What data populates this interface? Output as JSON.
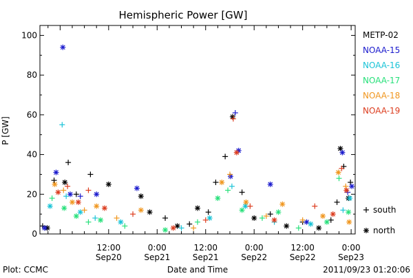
{
  "chart_data": {
    "type": "scatter",
    "title": "Hemispheric Power [GW]",
    "ylabel": "P [GW]",
    "xlabel": "Date and Time",
    "ylim": [
      0,
      105
    ],
    "yticks": [
      0,
      20,
      40,
      60,
      80,
      100
    ],
    "xlim": [
      "2011-09-19 19:00",
      "2011-09-23 01:00"
    ],
    "xticks": [
      {
        "time": "2011-09-20 12:00",
        "label1": "12:00",
        "label2": "Sep20"
      },
      {
        "time": "2011-09-21 00:00",
        "label1": "0:00",
        "label2": "Sep21"
      },
      {
        "time": "2011-09-21 12:00",
        "label1": "12:00",
        "label2": "Sep21"
      },
      {
        "time": "2011-09-22 00:00",
        "label1": "0:00",
        "label2": "Sep22"
      },
      {
        "time": "2011-09-22 12:00",
        "label1": "12:00",
        "label2": "Sep22"
      },
      {
        "time": "2011-09-23 00:00",
        "label1": "0:00",
        "label2": "Sep23"
      }
    ],
    "grid": false,
    "legend_position": "right",
    "markers": [
      {
        "symbol": "+",
        "label": "south"
      },
      {
        "symbol": "*",
        "label": "north"
      }
    ],
    "series": [
      {
        "name": "METP-02",
        "color": "#000000",
        "points": [
          [
            "2011-09-19 19:40",
            4,
            "+"
          ],
          [
            "2011-09-19 20:50",
            3,
            "*"
          ],
          [
            "2011-09-19 22:30",
            27,
            "+"
          ],
          [
            "2011-09-20 01:10",
            26,
            "*"
          ],
          [
            "2011-09-20 02:00",
            36,
            "+"
          ],
          [
            "2011-09-20 04:00",
            20,
            "+"
          ],
          [
            "2011-09-20 07:30",
            30,
            "+"
          ],
          [
            "2011-09-20 12:00",
            25,
            "*"
          ],
          [
            "2011-09-20 20:00",
            19,
            "*"
          ],
          [
            "2011-09-20 22:10",
            11,
            "*"
          ],
          [
            "2011-09-21 02:00",
            8,
            "+"
          ],
          [
            "2011-09-21 05:00",
            4,
            "*"
          ],
          [
            "2011-09-21 08:00",
            5,
            "+"
          ],
          [
            "2011-09-21 10:00",
            13,
            "*"
          ],
          [
            "2011-09-21 12:40",
            11,
            "+"
          ],
          [
            "2011-09-21 14:30",
            26,
            "+"
          ],
          [
            "2011-09-21 16:50",
            39,
            "+"
          ],
          [
            "2011-09-21 18:40",
            59,
            "*"
          ],
          [
            "2011-09-21 21:00",
            21,
            "+"
          ],
          [
            "2011-09-22 00:00",
            8,
            "*"
          ],
          [
            "2011-09-22 04:00",
            10,
            "+"
          ],
          [
            "2011-09-22 08:00",
            4,
            "*"
          ],
          [
            "2011-09-22 12:00",
            6,
            "+"
          ],
          [
            "2011-09-22 16:00",
            3,
            "*"
          ],
          [
            "2011-09-22 19:00",
            7,
            "+"
          ],
          [
            "2011-09-22 20:30",
            16,
            "+"
          ],
          [
            "2011-09-22 21:20",
            43,
            "*"
          ],
          [
            "2011-09-22 22:10",
            34,
            "+"
          ],
          [
            "2011-09-22 23:20",
            18,
            "*"
          ],
          [
            "2011-09-22 23:50",
            26,
            "+"
          ]
        ]
      },
      {
        "name": "NOAA-15",
        "color": "#1a1acd",
        "points": [
          [
            "2011-09-19 20:10",
            3,
            "*"
          ],
          [
            "2011-09-19 23:00",
            31,
            "*"
          ],
          [
            "2011-09-20 00:40",
            94,
            "*"
          ],
          [
            "2011-09-20 02:30",
            20,
            "*"
          ],
          [
            "2011-09-20 05:00",
            19,
            "+"
          ],
          [
            "2011-09-20 09:00",
            20,
            "*"
          ],
          [
            "2011-09-20 19:00",
            23,
            "*"
          ],
          [
            "2011-09-21 18:10",
            29,
            "*"
          ],
          [
            "2011-09-21 19:20",
            61,
            "+"
          ],
          [
            "2011-09-21 20:10",
            42,
            "*"
          ],
          [
            "2011-09-22 04:00",
            25,
            "*"
          ],
          [
            "2011-09-22 13:00",
            6,
            "*"
          ],
          [
            "2011-09-22 21:50",
            41,
            "*"
          ],
          [
            "2011-09-22 23:10",
            21,
            "+"
          ],
          [
            "2011-09-23 00:10",
            24,
            "*"
          ]
        ]
      },
      {
        "name": "NOAA-16",
        "color": "#19c3d7",
        "points": [
          [
            "2011-09-19 21:30",
            14,
            "*"
          ],
          [
            "2011-09-20 00:30",
            55,
            "+"
          ],
          [
            "2011-09-20 01:30",
            19,
            "+"
          ],
          [
            "2011-09-20 05:00",
            11,
            "*"
          ],
          [
            "2011-09-20 08:40",
            8,
            "+"
          ],
          [
            "2011-09-20 15:00",
            6,
            "*"
          ],
          [
            "2011-09-21 06:00",
            3,
            "+"
          ],
          [
            "2011-09-21 13:00",
            8,
            "*"
          ],
          [
            "2011-09-21 18:30",
            24,
            "+"
          ],
          [
            "2011-09-21 21:50",
            14,
            "*"
          ],
          [
            "2011-09-22 05:00",
            6,
            "+"
          ],
          [
            "2011-09-22 14:00",
            5,
            "*"
          ],
          [
            "2011-09-22 22:00",
            12,
            "+"
          ],
          [
            "2011-09-22 23:40",
            18,
            "*"
          ]
        ]
      },
      {
        "name": "NOAA-17",
        "color": "#27e07a",
        "points": [
          [
            "2011-09-19 22:00",
            18,
            "+"
          ],
          [
            "2011-09-20 01:00",
            13,
            "*"
          ],
          [
            "2011-09-20 04:00",
            9,
            "*"
          ],
          [
            "2011-09-20 07:00",
            6,
            "+"
          ],
          [
            "2011-09-20 10:00",
            7,
            "*"
          ],
          [
            "2011-09-20 16:00",
            4,
            "+"
          ],
          [
            "2011-09-21 02:00",
            2,
            "*"
          ],
          [
            "2011-09-21 10:00",
            6,
            "+"
          ],
          [
            "2011-09-21 15:00",
            18,
            "*"
          ],
          [
            "2011-09-21 17:30",
            22,
            "+"
          ],
          [
            "2011-09-21 21:00",
            12,
            "*"
          ],
          [
            "2011-09-22 02:00",
            8,
            "+"
          ],
          [
            "2011-09-22 06:00",
            11,
            "*"
          ],
          [
            "2011-09-22 11:00",
            3,
            "+"
          ],
          [
            "2011-09-22 18:00",
            6,
            "*"
          ],
          [
            "2011-09-22 21:00",
            28,
            "+"
          ],
          [
            "2011-09-22 23:20",
            11,
            "*"
          ]
        ]
      },
      {
        "name": "NOAA-18",
        "color": "#f0961e",
        "points": [
          [
            "2011-09-19 22:40",
            25,
            "*"
          ],
          [
            "2011-09-20 00:50",
            22,
            "+"
          ],
          [
            "2011-09-20 03:00",
            16,
            "*"
          ],
          [
            "2011-09-20 06:00",
            12,
            "+"
          ],
          [
            "2011-09-20 09:00",
            14,
            "*"
          ],
          [
            "2011-09-20 14:00",
            8,
            "+"
          ],
          [
            "2011-09-20 20:00",
            12,
            "*"
          ],
          [
            "2011-09-21 09:00",
            3,
            "+"
          ],
          [
            "2011-09-21 16:00",
            26,
            "*"
          ],
          [
            "2011-09-21 18:00",
            30,
            "+"
          ],
          [
            "2011-09-21 22:00",
            16,
            "*"
          ],
          [
            "2011-09-22 03:00",
            9,
            "+"
          ],
          [
            "2011-09-22 07:00",
            15,
            "*"
          ],
          [
            "2011-09-22 12:00",
            7,
            "+"
          ],
          [
            "2011-09-22 17:00",
            9,
            "*"
          ],
          [
            "2011-09-22 20:50",
            31,
            "*"
          ],
          [
            "2011-09-22 22:40",
            24,
            "+"
          ],
          [
            "2011-09-22 23:30",
            6,
            "*"
          ]
        ]
      },
      {
        "name": "NOAA-19",
        "color": "#dc3c1e",
        "points": [
          [
            "2011-09-19 23:30",
            21,
            "*"
          ],
          [
            "2011-09-20 01:50",
            24,
            "+"
          ],
          [
            "2011-09-20 04:30",
            16,
            "*"
          ],
          [
            "2011-09-20 07:00",
            22,
            "+"
          ],
          [
            "2011-09-20 11:00",
            13,
            "*"
          ],
          [
            "2011-09-20 18:00",
            10,
            "+"
          ],
          [
            "2011-09-21 04:00",
            3,
            "*"
          ],
          [
            "2011-09-21 12:00",
            7,
            "+"
          ],
          [
            "2011-09-21 18:50",
            58,
            "+"
          ],
          [
            "2011-09-21 19:40",
            41,
            "*"
          ],
          [
            "2011-09-21 23:00",
            14,
            "+"
          ],
          [
            "2011-09-22 05:00",
            7,
            "*"
          ],
          [
            "2011-09-22 15:00",
            14,
            "+"
          ],
          [
            "2011-09-22 19:30",
            10,
            "*"
          ],
          [
            "2011-09-22 21:40",
            33,
            "+"
          ],
          [
            "2011-09-22 22:50",
            22,
            "*"
          ]
        ]
      }
    ]
  },
  "footer": {
    "left": "Plot: CCMC",
    "right": "2011/09/23 01:20:06"
  }
}
